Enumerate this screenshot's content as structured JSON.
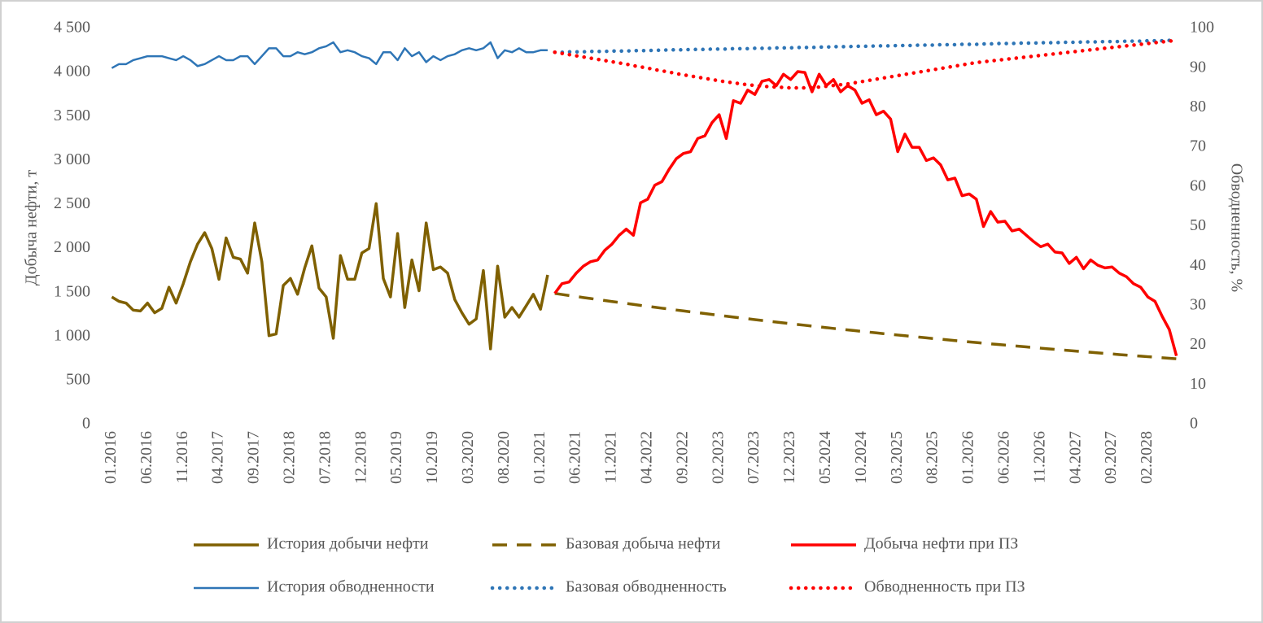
{
  "chart_data": {
    "type": "line",
    "y_label": "Добыча нефти, т",
    "y2_label": "Обводненность, %",
    "ylim": [
      0,
      4500
    ],
    "yticks": [
      0,
      500,
      {
        "value": 1000,
        "label": "1 000"
      },
      {
        "value": 1500,
        "label": "1 500"
      },
      {
        "value": 2000,
        "label": "2 000"
      },
      {
        "value": 2500,
        "label": "2 500"
      },
      {
        "value": 3000,
        "label": "3 000"
      },
      {
        "value": 3500,
        "label": "3 500"
      },
      {
        "value": 4000,
        "label": "4 000"
      },
      {
        "value": 4500,
        "label": "4 500"
      }
    ],
    "y2lim": [
      0,
      100
    ],
    "y2ticks": [
      0,
      10,
      20,
      30,
      40,
      50,
      60,
      70,
      80,
      90,
      100
    ],
    "categories": [
      "01.2016",
      null,
      null,
      null,
      null,
      "06.2016",
      null,
      null,
      null,
      null,
      "11.2016",
      null,
      null,
      null,
      null,
      "04.2017",
      null,
      null,
      null,
      null,
      "09.2017",
      null,
      null,
      null,
      null,
      "02.2018",
      null,
      null,
      null,
      null,
      "07.2018",
      null,
      null,
      null,
      null,
      "12.2018",
      null,
      null,
      null,
      null,
      "05.2019",
      null,
      null,
      null,
      null,
      "10.2019",
      null,
      null,
      null,
      null,
      "03.2020",
      null,
      null,
      null,
      null,
      "08.2020",
      null,
      null,
      null,
      null,
      "01.2021",
      null,
      null,
      null,
      null,
      "06.2021",
      null,
      null,
      null,
      null,
      "11.2021",
      null,
      null,
      null,
      null,
      "04.2022",
      null,
      null,
      null,
      null,
      "09.2022",
      null,
      null,
      null,
      null,
      "02.2023",
      null,
      null,
      null,
      null,
      "07.2023",
      null,
      null,
      null,
      null,
      "12.2023",
      null,
      null,
      null,
      null,
      "05.2024",
      null,
      null,
      null,
      null,
      "10.2024",
      null,
      null,
      null,
      null,
      "03.2025",
      null,
      null,
      null,
      null,
      "08.2025",
      null,
      null,
      null,
      null,
      "01.2026",
      null,
      null,
      null,
      null,
      "06.2026",
      null,
      null,
      null,
      null,
      "11.2026",
      null,
      null,
      null,
      null,
      "04.2027",
      null,
      null,
      null,
      null,
      "09.2027",
      null,
      null,
      null,
      null,
      "02.2028",
      null,
      null,
      null,
      null
    ],
    "series": [
      {
        "name": "История добычи нефти",
        "color": "#7f6000",
        "dash": "solid",
        "axis": "y",
        "values": [
          1450,
          1400,
          1380,
          1300,
          1290,
          1380,
          1270,
          1320,
          1560,
          1380,
          1600,
          1850,
          2050,
          2180,
          2000,
          1650,
          2120,
          1900,
          1880,
          1720,
          2290,
          1850,
          1010,
          1030,
          1580,
          1660,
          1480,
          1780,
          2030,
          1550,
          1450,
          980,
          1920,
          1650,
          1650,
          1950,
          2000,
          2510,
          1660,
          1450,
          2170,
          1330,
          1870,
          1520,
          2290,
          1760,
          1790,
          1720,
          1420,
          1270,
          1140,
          1200,
          1750,
          860,
          1800,
          1220,
          1330,
          1220,
          1350,
          1480,
          1310,
          1700,
          null,
          null,
          null,
          null,
          null,
          null,
          null,
          null,
          null,
          null,
          null,
          null,
          null,
          null,
          null,
          null,
          null,
          null,
          null,
          null,
          null,
          null,
          null,
          null,
          null,
          null,
          null,
          null,
          null,
          null,
          null,
          null,
          null,
          null,
          null,
          null,
          null,
          null,
          null,
          null,
          null,
          null,
          null,
          null,
          null,
          null,
          null,
          null,
          null,
          null,
          null,
          null,
          null,
          null,
          null,
          null,
          null,
          null,
          null,
          null,
          null,
          null,
          null,
          null,
          null,
          null,
          null,
          null,
          null,
          null,
          null,
          null,
          null,
          null,
          null,
          null,
          null,
          null,
          null,
          null,
          null,
          null,
          null,
          null,
          null,
          null,
          null,
          null
        ]
      },
      {
        "name": "Базовая добыча нефти",
        "color": "#7f6000",
        "dash": "dashed",
        "axis": "y",
        "values": [
          null,
          null,
          null,
          null,
          null,
          null,
          null,
          null,
          null,
          null,
          null,
          null,
          null,
          null,
          null,
          null,
          null,
          null,
          null,
          null,
          null,
          null,
          null,
          null,
          null,
          null,
          null,
          null,
          null,
          null,
          null,
          null,
          null,
          null,
          null,
          null,
          null,
          null,
          null,
          null,
          null,
          null,
          null,
          null,
          null,
          null,
          null,
          null,
          null,
          null,
          null,
          null,
          null,
          null,
          null,
          null,
          null,
          null,
          null,
          null,
          null,
          null,
          1490,
          1478,
          1466,
          1455,
          1443,
          1432,
          1420,
          1409,
          1398,
          1387,
          1376,
          1365,
          1354,
          1343,
          1333,
          1322,
          1312,
          1301,
          1291,
          1281,
          1271,
          1261,
          1251,
          1241,
          1231,
          1221,
          1211,
          1202,
          1192,
          1183,
          1173,
          1164,
          1155,
          1146,
          1137,
          1128,
          1119,
          1110,
          1101,
          1092,
          1084,
          1075,
          1067,
          1058,
          1050,
          1042,
          1033,
          1025,
          1017,
          1009,
          1001,
          993,
          985,
          977,
          970,
          962,
          954,
          947,
          939,
          932,
          924,
          917,
          910,
          903,
          896,
          889,
          882,
          875,
          868,
          861,
          854,
          847,
          841,
          834,
          827,
          821,
          814,
          808,
          802,
          795,
          789,
          783,
          777,
          771,
          765,
          759,
          753,
          747
        ]
      },
      {
        "name": "Добыча нефти при ПЗ",
        "color": "#ff0000",
        "dash": "solid",
        "axis": "y",
        "values": [
          null,
          null,
          null,
          null,
          null,
          null,
          null,
          null,
          null,
          null,
          null,
          null,
          null,
          null,
          null,
          null,
          null,
          null,
          null,
          null,
          null,
          null,
          null,
          null,
          null,
          null,
          null,
          null,
          null,
          null,
          null,
          null,
          null,
          null,
          null,
          null,
          null,
          null,
          null,
          null,
          null,
          null,
          null,
          null,
          null,
          null,
          null,
          null,
          null,
          null,
          null,
          null,
          null,
          null,
          null,
          null,
          null,
          null,
          null,
          null,
          null,
          null,
          1490,
          1600,
          1620,
          1720,
          1800,
          1850,
          1870,
          1980,
          2050,
          2150,
          2220,
          2150,
          2520,
          2560,
          2720,
          2760,
          2900,
          3020,
          3080,
          3100,
          3250,
          3280,
          3430,
          3520,
          3250,
          3680,
          3650,
          3800,
          3750,
          3900,
          3920,
          3850,
          3980,
          3920,
          4010,
          4000,
          3780,
          3980,
          3850,
          3920,
          3780,
          3850,
          3800,
          3650,
          3690,
          3520,
          3560,
          3470,
          3100,
          3300,
          3150,
          3150,
          3000,
          3030,
          2950,
          2780,
          2800,
          2600,
          2620,
          2560,
          2250,
          2420,
          2300,
          2310,
          2200,
          2220,
          2150,
          2080,
          2020,
          2050,
          1960,
          1950,
          1830,
          1900,
          1770,
          1870,
          1810,
          1780,
          1790,
          1720,
          1680,
          1600,
          1560,
          1450,
          1400,
          1230,
          1080,
          780
        ]
      },
      {
        "name": "История обводненности",
        "color": "#2e75b6",
        "dash": "solid",
        "axis": "y2",
        "values": [
          90,
          91,
          91,
          92,
          92.5,
          93,
          93,
          93,
          92.5,
          92,
          93,
          92,
          90.5,
          91,
          92,
          93,
          92,
          92,
          93,
          93,
          91,
          93,
          95,
          95,
          93,
          93,
          94,
          93.5,
          94,
          95,
          95.5,
          96.5,
          94,
          94.5,
          94,
          93,
          92.5,
          91,
          94,
          94,
          92,
          95,
          93,
          94,
          91.5,
          93,
          92,
          93,
          93.5,
          94.5,
          95,
          94.5,
          95,
          96.5,
          92.5,
          94.5,
          94,
          95,
          94,
          94,
          94.5,
          94.5,
          null,
          null,
          null,
          null,
          null,
          null,
          null,
          null,
          null,
          null,
          null,
          null,
          null,
          null,
          null,
          null,
          null,
          null,
          null,
          null,
          null,
          null,
          null,
          null,
          null,
          null,
          null,
          null,
          null,
          null,
          null,
          null,
          null,
          null,
          null,
          null,
          null,
          null,
          null,
          null,
          null,
          null,
          null,
          null,
          null,
          null,
          null,
          null,
          null,
          null,
          null,
          null,
          null,
          null,
          null,
          null,
          null,
          null,
          null,
          null,
          null,
          null,
          null,
          null,
          null,
          null,
          null,
          null,
          null,
          null,
          null,
          null,
          null,
          null,
          null,
          null,
          null,
          null,
          null,
          null,
          null,
          null,
          null,
          null,
          null,
          null,
          null,
          null
        ]
      },
      {
        "name": "Базовая обводненность",
        "color": "#2e75b6",
        "dash": "dotted",
        "axis": "y2",
        "values": [
          null,
          null,
          null,
          null,
          null,
          null,
          null,
          null,
          null,
          null,
          null,
          null,
          null,
          null,
          null,
          null,
          null,
          null,
          null,
          null,
          null,
          null,
          null,
          null,
          null,
          null,
          null,
          null,
          null,
          null,
          null,
          null,
          null,
          null,
          null,
          null,
          null,
          null,
          null,
          null,
          null,
          null,
          null,
          null,
          null,
          null,
          null,
          null,
          null,
          null,
          null,
          null,
          null,
          null,
          null,
          null,
          null,
          null,
          null,
          null,
          null,
          null,
          94,
          94,
          94.1,
          94.1,
          94.1,
          94.2,
          94.2,
          94.2,
          94.3,
          94.3,
          94.3,
          94.4,
          94.4,
          94.4,
          94.5,
          94.5,
          94.6,
          94.6,
          94.6,
          94.7,
          94.7,
          94.7,
          94.8,
          94.8,
          94.8,
          94.9,
          94.9,
          94.9,
          95,
          95,
          95,
          95.1,
          95.1,
          95.1,
          95.2,
          95.2,
          95.2,
          95.3,
          95.3,
          95.4,
          95.4,
          95.4,
          95.5,
          95.5,
          95.5,
          95.6,
          95.6,
          95.6,
          95.7,
          95.7,
          95.7,
          95.8,
          95.8,
          95.8,
          95.9,
          95.9,
          95.9,
          96,
          96,
          96,
          96.1,
          96.1,
          96.2,
          96.2,
          96.2,
          96.3,
          96.3,
          96.3,
          96.4,
          96.4,
          96.4,
          96.5,
          96.5,
          96.5,
          96.6,
          96.6,
          96.6,
          96.7,
          96.7,
          96.7,
          96.8,
          96.8,
          96.8,
          96.9,
          96.9,
          96.9,
          97,
          97
        ]
      },
      {
        "name": "Обводненность при ПЗ",
        "color": "#ff0000",
        "dash": "dotted",
        "axis": "y2",
        "values": [
          null,
          null,
          null,
          null,
          null,
          null,
          null,
          null,
          null,
          null,
          null,
          null,
          null,
          null,
          null,
          null,
          null,
          null,
          null,
          null,
          null,
          null,
          null,
          null,
          null,
          null,
          null,
          null,
          null,
          null,
          null,
          null,
          null,
          null,
          null,
          null,
          null,
          null,
          null,
          null,
          null,
          null,
          null,
          null,
          null,
          null,
          null,
          null,
          null,
          null,
          null,
          null,
          null,
          null,
          null,
          null,
          null,
          null,
          null,
          null,
          null,
          null,
          94,
          93.7,
          93.4,
          93.1,
          92.8,
          92.5,
          92.2,
          91.9,
          91.6,
          91.3,
          91,
          90.6,
          90.3,
          90,
          89.6,
          89.3,
          89,
          88.6,
          88.3,
          88,
          87.7,
          87.4,
          87.1,
          86.8,
          86.5,
          86.3,
          86,
          85.8,
          85.6,
          85.4,
          85.3,
          85.2,
          85.1,
          85,
          85,
          85,
          85.1,
          85.2,
          85.4,
          85.6,
          85.8,
          86,
          86.3,
          86.6,
          86.9,
          87.2,
          87.5,
          87.8,
          88.1,
          88.4,
          88.7,
          89,
          89.3,
          89.6,
          89.9,
          90.2,
          90.5,
          90.8,
          91.1,
          91.4,
          91.6,
          91.8,
          92,
          92.2,
          92.4,
          92.6,
          92.8,
          93,
          93.2,
          93.4,
          93.6,
          93.8,
          94,
          94.2,
          94.4,
          94.6,
          94.8,
          95,
          95.2,
          95.4,
          95.6,
          95.8,
          96,
          96.2,
          96.4,
          96.6,
          96.8,
          97
        ]
      }
    ]
  }
}
